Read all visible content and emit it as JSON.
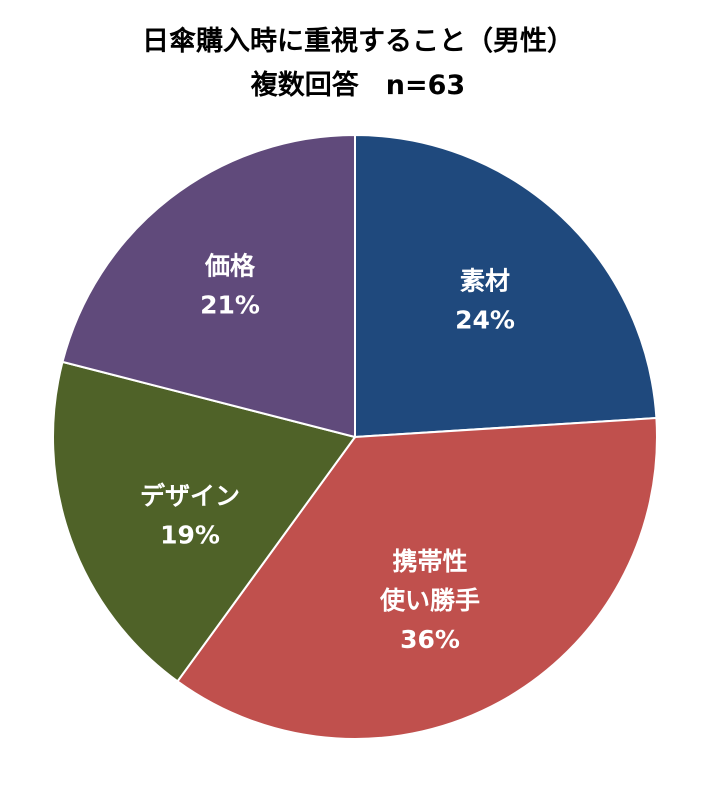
{
  "chart_data": {
    "type": "pie",
    "title": "日傘購入時に重視すること（男性）",
    "subtitle": "複数回答　n=63",
    "slices": [
      {
        "label_lines": [
          "素材"
        ],
        "value": 24,
        "value_label": "24%",
        "color": "#1F497D"
      },
      {
        "label_lines": [
          "携帯性",
          "使い勝手"
        ],
        "value": 36,
        "value_label": "36%",
        "color": "#C0504D"
      },
      {
        "label_lines": [
          "デザイン"
        ],
        "value": 19,
        "value_label": "19%",
        "color": "#4F6228"
      },
      {
        "label_lines": [
          "価格"
        ],
        "value": 21,
        "value_label": "21%",
        "color": "#604A7B"
      }
    ],
    "start_angle": "12 o'clock",
    "direction": "clockwise",
    "legend": "none"
  }
}
